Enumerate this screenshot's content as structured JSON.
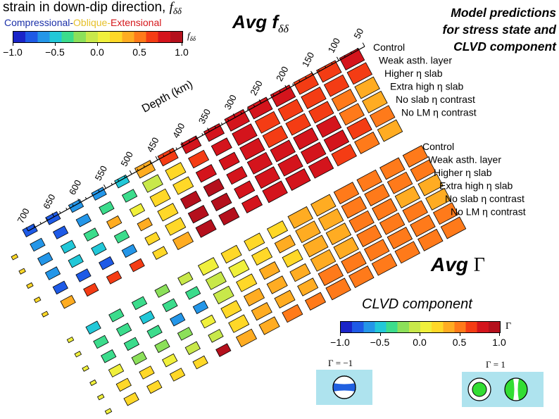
{
  "title": {
    "line": "strain in down-dip direction, ",
    "symbol": "f",
    "symbol_sub": "δδ"
  },
  "categories": {
    "compressional": "Compressional",
    "sep1": "-",
    "oblique": "Oblique",
    "sep2": "-",
    "extensional": "Extensional"
  },
  "panel_f": {
    "label": "Avg f",
    "label_sub": "δδ"
  },
  "panel_gamma": {
    "label": "Avg ",
    "symbol": "Γ"
  },
  "model_title": {
    "line1": "Model predictions",
    "line2": "for stress state and",
    "line3": "CLVD component"
  },
  "depth_axis": {
    "label": "Depth (km)",
    "ticks": [
      "50",
      "100",
      "150",
      "200",
      "250",
      "300",
      "350",
      "400",
      "450",
      "500",
      "550",
      "600",
      "650",
      "700"
    ]
  },
  "models_top": [
    "Control",
    "Weak asth. layer",
    "Higher η slab",
    "Extra high η slab",
    "No slab  η contrast",
    "No LM  η contrast"
  ],
  "models_bottom": [
    "Control",
    "Weak asth. layer",
    "Higher η slab",
    "Extra high η slab",
    "No slab  η contrast",
    "No LM  η contrast"
  ],
  "colorbar_f": {
    "symbol": "f",
    "symbol_sub": "δδ",
    "ticks": [
      "−1.0",
      "−0.5",
      "0.0",
      "0.5",
      "1.0"
    ]
  },
  "colorbar_gamma": {
    "title": "CLVD component",
    "symbol": "Γ",
    "ticks": [
      "−1.0",
      "−0.5",
      "0.0",
      "0.5",
      "1.0"
    ]
  },
  "mechanisms": {
    "minus_label": "Γ = −1",
    "plus_label": "Γ = 1"
  },
  "colors": {
    "colormap": [
      "#1a24c8",
      "#1e5ae6",
      "#2496e8",
      "#22c8d8",
      "#3cdc8c",
      "#8ce05a",
      "#c8e84a",
      "#f0f03c",
      "#ffd828",
      "#ffac22",
      "#ff7a1a",
      "#f43c14",
      "#d4141c",
      "#b4101c"
    ],
    "panel_bg": "#aee3ee",
    "ball_green": "#33dd33",
    "ball_blue": "#2060e0"
  },
  "grid_top": [
    [
      0.72,
      0.7,
      0.7,
      0.72,
      0.74,
      0.74,
      0.74,
      0.74,
      0.6,
      0.3,
      -0.55,
      -0.65,
      -0.7,
      -0.75,
      -0.78,
      null
    ],
    [
      0.66,
      0.68,
      0.7,
      0.7,
      0.7,
      0.72,
      0.72,
      0.7,
      0.2,
      -0.1,
      -0.3,
      -0.4,
      -0.7,
      -0.72,
      -0.7,
      0.22
    ],
    [
      0.4,
      0.55,
      0.6,
      0.68,
      0.7,
      0.72,
      0.74,
      0.74,
      0.15,
      0.15,
      0.1,
      0.35,
      -0.4,
      -0.55,
      -0.6,
      0.2
    ],
    [
      0.3,
      0.5,
      0.72,
      0.72,
      0.74,
      0.72,
      0.8,
      0.9,
      0.9,
      0.2,
      0.3,
      -0.3,
      -0.5,
      -0.55,
      -0.6,
      0.2
    ],
    [
      0.45,
      0.65,
      0.72,
      0.72,
      0.74,
      0.76,
      0.76,
      0.9,
      0.92,
      0.2,
      0.2,
      -0.7,
      -0.72,
      -0.74,
      -0.75,
      0.2
    ],
    [
      0.3,
      0.55,
      0.7,
      0.72,
      0.74,
      0.74,
      0.78,
      0.9,
      0.95,
      0.3,
      0.25,
      0.6,
      0.7,
      0.62,
      0.4,
      0.2
    ]
  ],
  "grid_bottom": [
    [
      0.52,
      0.46,
      0.45,
      0.45,
      0.42,
      0.35,
      0.28,
      0.22,
      0.15,
      0.05,
      -0.05,
      -0.2,
      -0.3,
      -0.4,
      -0.5,
      0.1
    ],
    [
      0.5,
      0.52,
      0.5,
      0.48,
      0.42,
      0.36,
      0.32,
      0.25,
      0.12,
      -0.05,
      -0.3,
      -0.4,
      -0.45,
      -0.4,
      -0.4,
      0.1
    ],
    [
      0.38,
      0.42,
      0.48,
      0.44,
      0.4,
      0.4,
      0.28,
      0.3,
      0.2,
      -0.1,
      -0.7,
      -0.65,
      -0.4,
      -0.4,
      -0.35,
      0.1
    ],
    [
      0.4,
      0.45,
      0.48,
      0.48,
      0.4,
      0.4,
      0.36,
      0.36,
      0.32,
      0.2,
      0.1,
      -0.15,
      -0.2,
      -0.25,
      0.1,
      0.1
    ],
    [
      0.45,
      0.48,
      0.5,
      0.5,
      0.46,
      0.44,
      0.4,
      0.36,
      0.3,
      0.26,
      -0.05,
      -0.1,
      0.1,
      0.15,
      0.2,
      0.1
    ],
    [
      0.44,
      0.5,
      0.52,
      0.55,
      0.55,
      0.5,
      0.5,
      0.5,
      0.4,
      0.4,
      0.9,
      0.25,
      0.2,
      0.2,
      0.25,
      0.1
    ]
  ]
}
